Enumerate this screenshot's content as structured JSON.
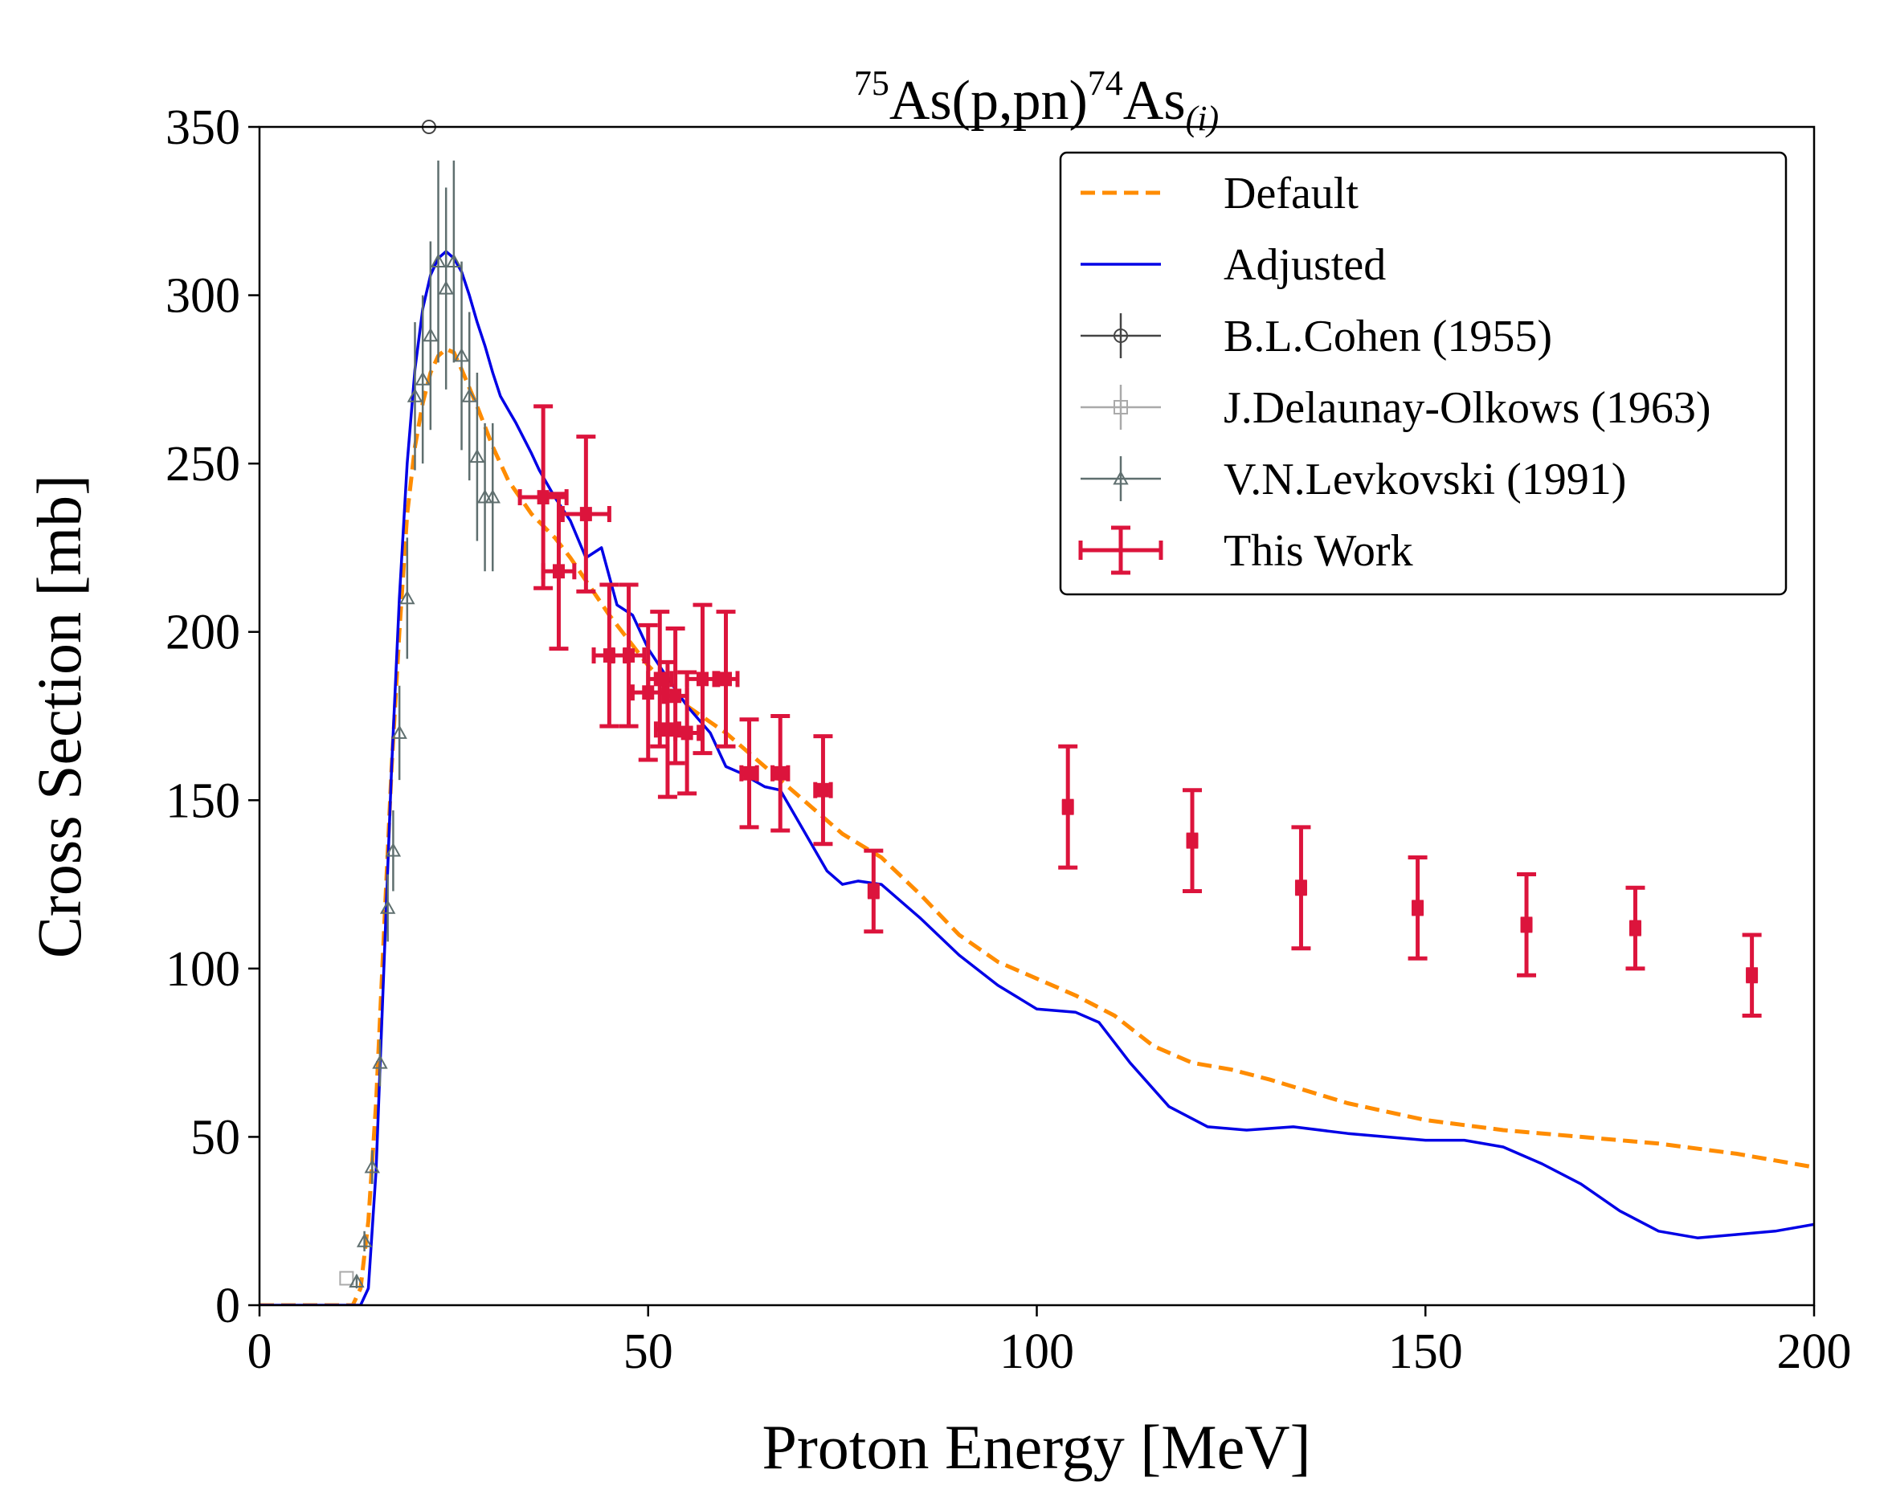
{
  "chart_data": {
    "type": "line",
    "title": {
      "mass_target": "75",
      "target": "As(p,pn)",
      "mass_product": "74",
      "product": "As",
      "subscript": "(i)"
    },
    "xlabel": "Proton Energy [MeV]",
    "ylabel": "Cross Section [mb]",
    "xlim": [
      0,
      200
    ],
    "ylim": [
      0,
      350
    ],
    "xticks": [
      0,
      50,
      100,
      150,
      200
    ],
    "yticks": [
      0,
      50,
      100,
      150,
      200,
      250,
      300,
      350
    ],
    "grid": false,
    "legend_position": "top-right",
    "colors": {
      "default": "#ff8c00",
      "adjusted": "#0000e6",
      "cohen": "#444444",
      "delaunay": "#aaaaaa",
      "levkovski": "#5f6f6f",
      "this_work": "#dc143c"
    },
    "series": [
      {
        "name": "Default",
        "kind": "line",
        "style": "dashed",
        "x": [
          0,
          12,
          13,
          14,
          15,
          16,
          17,
          18,
          19,
          20,
          21,
          22,
          23,
          24,
          25,
          26,
          28,
          30,
          32,
          35,
          38,
          40,
          45,
          50,
          55,
          60,
          65,
          70,
          75,
          80,
          85,
          90,
          95,
          100,
          105,
          110,
          115,
          120,
          125,
          130,
          140,
          150,
          160,
          170,
          180,
          190,
          200
        ],
        "y": [
          0,
          0,
          5,
          25,
          60,
          110,
          160,
          200,
          235,
          255,
          268,
          277,
          282,
          284,
          283,
          278,
          267,
          255,
          245,
          235,
          228,
          222,
          205,
          190,
          178,
          170,
          160,
          150,
          140,
          133,
          122,
          110,
          102,
          97,
          92,
          86,
          77,
          72,
          70,
          67,
          60,
          55,
          52,
          50,
          48,
          45,
          41
        ]
      },
      {
        "name": "Adjusted",
        "kind": "line",
        "style": "solid",
        "x": [
          0,
          12,
          13,
          14,
          15,
          16,
          17,
          18,
          19,
          20,
          21,
          22,
          23,
          24,
          25,
          26,
          27,
          28,
          29,
          30,
          31,
          32,
          33,
          35,
          36,
          38,
          40,
          42,
          44,
          46,
          48,
          50,
          52,
          55,
          58,
          60,
          62,
          65,
          67,
          70,
          73,
          75,
          77,
          80,
          85,
          90,
          95,
          100,
          105,
          108,
          112,
          117,
          122,
          127,
          133,
          140,
          150,
          155,
          160,
          165,
          170,
          175,
          180,
          185,
          190,
          195,
          200
        ],
        "y": [
          0,
          0,
          0,
          5,
          40,
          100,
          160,
          210,
          250,
          278,
          296,
          306,
          311,
          313,
          311,
          307,
          300,
          292,
          285,
          277,
          270,
          266,
          262,
          253,
          248,
          240,
          233,
          222,
          225,
          208,
          205,
          195,
          188,
          178,
          170,
          160,
          158,
          154,
          153,
          141,
          129,
          125,
          126,
          125,
          115,
          104,
          95,
          88,
          87,
          84,
          72,
          59,
          53,
          52,
          53,
          51,
          49,
          49,
          47,
          42,
          36,
          28,
          22,
          20,
          21,
          22,
          24
        ]
      },
      {
        "name": "B.L.Cohen (1955)",
        "kind": "errorbar",
        "marker": "circle",
        "x": [
          21.8
        ],
        "y": [
          350
        ],
        "yerr": [
          0
        ]
      },
      {
        "name": "J.Delaunay-Olkows (1963)",
        "kind": "errorbar",
        "marker": "square",
        "x": [
          11.2
        ],
        "y": [
          8
        ],
        "yerr": [
          0
        ]
      },
      {
        "name": "V.N.Levkovski (1991)",
        "kind": "errorbar",
        "marker": "triangle",
        "x": [
          12.5,
          13.5,
          14.5,
          15.5,
          16.5,
          17.2,
          18.0,
          19.0,
          20.0,
          21.0,
          22.0,
          23.0,
          24.0,
          25.0,
          26.0,
          27.0,
          28.0,
          29.0,
          30.0
        ],
        "y": [
          7,
          19,
          41,
          72,
          118,
          135,
          170,
          210,
          270,
          275,
          288,
          310,
          302,
          310,
          282,
          270,
          252,
          240,
          240
        ],
        "yerr": [
          2,
          3,
          5,
          7,
          10,
          12,
          14,
          18,
          22,
          25,
          28,
          30,
          30,
          30,
          28,
          25,
          25,
          22,
          22
        ]
      },
      {
        "name": "This Work",
        "kind": "errorbar",
        "marker": "square",
        "x": [
          36.5,
          38.5,
          42.0,
          45.0,
          47.5,
          50.0,
          51.5,
          52.5,
          53.5,
          55.0,
          57.0,
          60.0,
          63.0,
          67.0,
          72.5,
          79.0,
          104.0,
          120.0,
          134.0,
          149.0,
          163.0,
          177.0,
          192.0
        ],
        "y": [
          240,
          218,
          235,
          193,
          193,
          182,
          186,
          171,
          181,
          170,
          186,
          186,
          158,
          158,
          153,
          123,
          148,
          138,
          124,
          118,
          113,
          112,
          98
        ],
        "yerr": [
          27,
          23,
          23,
          21,
          21,
          20,
          20,
          20,
          20,
          18,
          22,
          20,
          16,
          17,
          16,
          12,
          18,
          15,
          18,
          15,
          15,
          12,
          12
        ],
        "xerr": [
          3,
          2,
          3,
          2,
          2,
          2,
          1.5,
          1.5,
          1.5,
          1.5,
          2,
          1.5,
          1,
          1,
          1,
          0.5,
          0.5,
          0.5,
          0.5,
          0.5,
          0.5,
          0.5,
          0.5
        ]
      }
    ]
  }
}
